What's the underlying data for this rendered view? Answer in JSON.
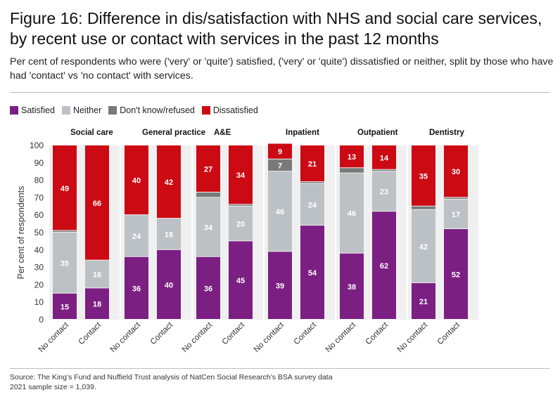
{
  "title": "Figure 16: Difference in dis/satisfaction with NHS and social care services, by recent use or contact with services in the past 12 months",
  "subtitle": "Per cent of respondents who were ('very' or 'quite') satisfied, ('very' or 'quite') dissatisfied or neither, split by those who have had 'contact' vs 'no contact' with services.",
  "legend": [
    {
      "label": "Satisfied",
      "color": "#7b1f82"
    },
    {
      "label": "Neither",
      "color": "#bcc1c6"
    },
    {
      "label": "Don't know/refused",
      "color": "#7a7a7a"
    },
    {
      "label": "Dissatisfied",
      "color": "#cc0a14"
    }
  ],
  "source": {
    "line1": "Source: The King’s Fund and Nuffield Trust analysis of NatCen Social Research’s BSA survey data",
    "line2": "2021 sample size = 1,039."
  },
  "chart_data": {
    "type": "bar",
    "stacked": true,
    "ylabel": "Per cent of respondents",
    "ylim": [
      0,
      100
    ],
    "yticks": [
      0,
      10,
      20,
      30,
      40,
      50,
      60,
      70,
      80,
      90,
      100
    ],
    "categories": [
      "No contact",
      "Contact"
    ],
    "groups": [
      {
        "name": "Social care",
        "bars": [
          {
            "category": "No contact",
            "satisfied": 15,
            "neither": 35,
            "dontknow": 1,
            "dissatisfied": 49
          },
          {
            "category": "Contact",
            "satisfied": 18,
            "neither": 16,
            "dontknow": 0,
            "dissatisfied": 66
          }
        ]
      },
      {
        "name": "General practice",
        "bars": [
          {
            "category": "No contact",
            "satisfied": 36,
            "neither": 24,
            "dontknow": 0,
            "dissatisfied": 40
          },
          {
            "category": "Contact",
            "satisfied": 40,
            "neither": 18,
            "dontknow": 0,
            "dissatisfied": 42
          }
        ]
      },
      {
        "name": "A&E",
        "bars": [
          {
            "category": "No contact",
            "satisfied": 36,
            "neither": 34,
            "dontknow": 3,
            "dissatisfied": 27
          },
          {
            "category": "Contact",
            "satisfied": 45,
            "neither": 20,
            "dontknow": 1,
            "dissatisfied": 34
          }
        ]
      },
      {
        "name": "Inpatient",
        "bars": [
          {
            "category": "No contact",
            "satisfied": 39,
            "neither": 46,
            "dontknow": 7,
            "dissatisfied": 9
          },
          {
            "category": "Contact",
            "satisfied": 54,
            "neither": 24,
            "dontknow": 1,
            "dissatisfied": 21
          }
        ]
      },
      {
        "name": "Outpatient",
        "bars": [
          {
            "category": "No contact",
            "satisfied": 38,
            "neither": 46,
            "dontknow": 3,
            "dissatisfied": 13
          },
          {
            "category": "Contact",
            "satisfied": 62,
            "neither": 23,
            "dontknow": 1,
            "dissatisfied": 14
          }
        ]
      },
      {
        "name": "Dentistry",
        "bars": [
          {
            "category": "No contact",
            "satisfied": 21,
            "neither": 42,
            "dontknow": 2,
            "dissatisfied": 35
          },
          {
            "category": "Contact",
            "satisfied": 52,
            "neither": 17,
            "dontknow": 1,
            "dissatisfied": 30
          }
        ]
      }
    ],
    "segments": [
      {
        "key": "satisfied",
        "label": "Satisfied",
        "color": "#7b1f82",
        "labeled": true
      },
      {
        "key": "neither",
        "label": "Neither",
        "color": "#bcc1c6",
        "labeled": true
      },
      {
        "key": "dontknow",
        "label": "Don't know/refused",
        "color": "#7a7a7a",
        "labeled": true
      },
      {
        "key": "dissatisfied",
        "label": "Dissatisfied",
        "color": "#cc0a14",
        "labeled": true
      }
    ]
  }
}
